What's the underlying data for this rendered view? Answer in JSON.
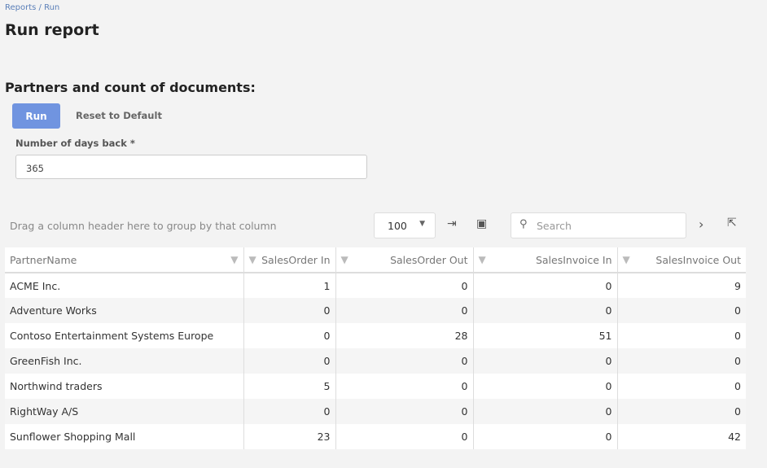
{
  "breadcrumb": "Reports / Run",
  "page_title": "Run report",
  "report_title": "Partners and count of documents:",
  "buttons": {
    "run": "Run",
    "reset": "Reset to Default"
  },
  "param": {
    "label": "Number of days back *",
    "value": "365"
  },
  "grid": {
    "group_hint": "Drag a column header here to group by that column",
    "page_size": "100",
    "search_placeholder": "Search",
    "columns": [
      "PartnerName",
      "SalesOrder In",
      "SalesOrder Out",
      "SalesInvoice In",
      "SalesInvoice Out"
    ],
    "rows": [
      [
        "ACME Inc.",
        "1",
        "0",
        "0",
        "9"
      ],
      [
        "Adventure Works",
        "0",
        "0",
        "0",
        "0"
      ],
      [
        "Contoso Entertainment Systems Europe",
        "0",
        "28",
        "51",
        "0"
      ],
      [
        "GreenFish Inc.",
        "0",
        "0",
        "0",
        "0"
      ],
      [
        "Northwind traders",
        "5",
        "0",
        "0",
        "0"
      ],
      [
        "RightWay A/S",
        "0",
        "0",
        "0",
        "0"
      ],
      [
        "Sunflower Shopping Mall",
        "23",
        "0",
        "0",
        "42"
      ]
    ]
  }
}
